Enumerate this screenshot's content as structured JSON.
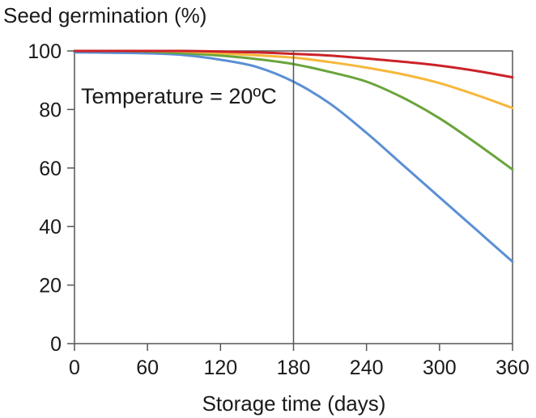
{
  "chart_data": {
    "type": "line",
    "ylabel": "Seed germination (%)",
    "xlabel": "Storage time (days)",
    "annotation": "Temperature = 20ºC",
    "xlim": [
      0,
      360
    ],
    "ylim": [
      0,
      100
    ],
    "x_ticks": [
      0,
      60,
      120,
      180,
      240,
      300,
      360
    ],
    "y_ticks": [
      0,
      20,
      40,
      60,
      80,
      100
    ],
    "grid": false,
    "reference_line_x": 180,
    "x": [
      0,
      30,
      60,
      90,
      120,
      150,
      180,
      210,
      240,
      270,
      300,
      330,
      360
    ],
    "series": [
      {
        "color": "#cc2229",
        "values": [
          100,
          100,
          100,
          100,
          99.8,
          99.5,
          99,
          98.4,
          97.4,
          96.3,
          95,
          93.2,
          91
        ]
      },
      {
        "color": "#f6b73c",
        "values": [
          100,
          100,
          100,
          99.8,
          99.2,
          98.5,
          97.7,
          96.2,
          94.3,
          92,
          89,
          85,
          80.5
        ]
      },
      {
        "color": "#6aa43c",
        "values": [
          100,
          100,
          99.8,
          99.2,
          98.4,
          97.2,
          95.5,
          92.8,
          89.5,
          84,
          77,
          68.5,
          59.5
        ]
      },
      {
        "color": "#5b8fd4",
        "values": [
          99.5,
          99.4,
          99.2,
          98.6,
          97,
          94.5,
          89.5,
          82,
          72,
          61,
          50,
          39,
          28
        ]
      }
    ]
  }
}
